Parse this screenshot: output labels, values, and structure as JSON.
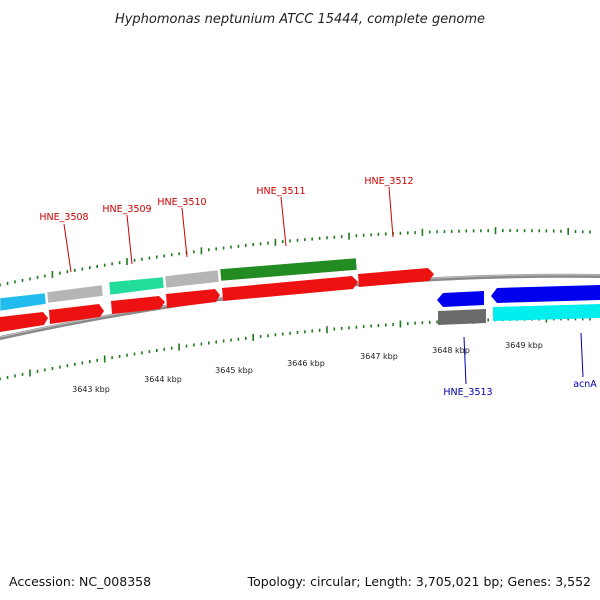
{
  "title": "Hyphomonas neptunium ATCC 15444, complete genome",
  "footer": {
    "accession": "Accession: NC_008358",
    "summary": "Topology: circular; Length: 3,705,021 bp; Genes: 3,552"
  },
  "colors": {
    "backbone": "#8a8a8a",
    "ticks": "#1e7a1e",
    "forward_label": "#cc0000",
    "reverse_label": "#0000aa"
  },
  "scale_labels": [
    "3643 kbp",
    "3644 kbp",
    "3645 kbp",
    "3646 kbp",
    "3647 kbp",
    "3648 kbp",
    "3649 kbp"
  ],
  "labeled_genes": [
    {
      "name": "HNE_3508",
      "strand": "forward"
    },
    {
      "name": "HNE_3509",
      "strand": "forward"
    },
    {
      "name": "HNE_3510",
      "strand": "forward"
    },
    {
      "name": "HNE_3511",
      "strand": "forward"
    },
    {
      "name": "HNE_3512",
      "strand": "forward"
    },
    {
      "name": "HNE_3513",
      "strand": "reverse"
    },
    {
      "name": "acnA",
      "strand": "reverse"
    }
  ],
  "feature_colors": {
    "cds_forward": "#ee1111",
    "cds_reverse": "#0000ee",
    "light_blue": "#22bbee",
    "grey": "#b5b5b5",
    "mint": "#22dd99",
    "green": "#228b22",
    "dark_grey": "#6a6a6a",
    "cyan": "#00eeee"
  }
}
